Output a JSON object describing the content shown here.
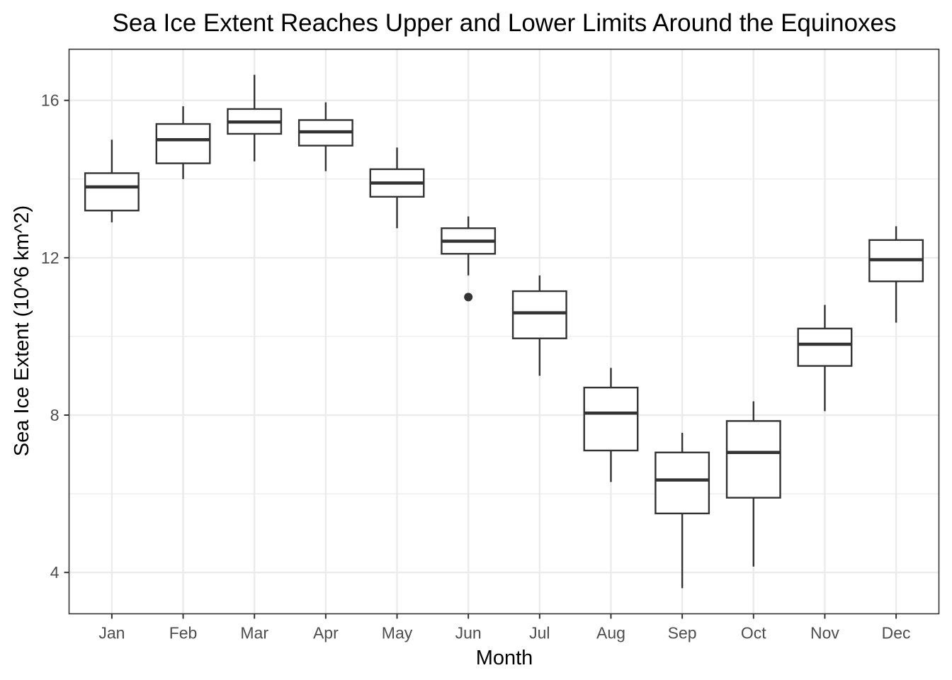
{
  "chart_data": {
    "type": "boxplot",
    "title": "Sea Ice Extent Reaches Upper and Lower Limits Around the Equinoxes",
    "xlabel": "Month",
    "ylabel": "Sea Ice Extent (10^6 km^2)",
    "ylim": [
      2.95,
      17.3
    ],
    "yticks": [
      4,
      8,
      12,
      16
    ],
    "grid": true,
    "categories": [
      "Jan",
      "Feb",
      "Mar",
      "Apr",
      "May",
      "Jun",
      "Jul",
      "Aug",
      "Sep",
      "Oct",
      "Nov",
      "Dec"
    ],
    "boxes": [
      {
        "min": 12.9,
        "q1": 13.2,
        "median": 13.8,
        "q3": 14.15,
        "max": 15.0,
        "outliers": []
      },
      {
        "min": 14.0,
        "q1": 14.4,
        "median": 15.0,
        "q3": 15.4,
        "max": 15.85,
        "outliers": []
      },
      {
        "min": 14.45,
        "q1": 15.15,
        "median": 15.45,
        "q3": 15.78,
        "max": 16.65,
        "outliers": []
      },
      {
        "min": 14.2,
        "q1": 14.85,
        "median": 15.2,
        "q3": 15.5,
        "max": 15.95,
        "outliers": []
      },
      {
        "min": 12.75,
        "q1": 13.55,
        "median": 13.9,
        "q3": 14.25,
        "max": 14.8,
        "outliers": []
      },
      {
        "min": 11.55,
        "q1": 12.1,
        "median": 12.42,
        "q3": 12.75,
        "max": 13.05,
        "outliers": [
          11.0
        ]
      },
      {
        "min": 9.0,
        "q1": 9.95,
        "median": 10.6,
        "q3": 11.15,
        "max": 11.55,
        "outliers": []
      },
      {
        "min": 6.3,
        "q1": 7.1,
        "median": 8.05,
        "q3": 8.7,
        "max": 9.2,
        "outliers": []
      },
      {
        "min": 3.6,
        "q1": 5.5,
        "median": 6.35,
        "q3": 7.05,
        "max": 7.55,
        "outliers": []
      },
      {
        "min": 4.15,
        "q1": 5.9,
        "median": 7.05,
        "q3": 7.85,
        "max": 8.35,
        "outliers": []
      },
      {
        "min": 8.1,
        "q1": 9.25,
        "median": 9.8,
        "q3": 10.2,
        "max": 10.8,
        "outliers": []
      },
      {
        "min": 10.35,
        "q1": 11.4,
        "median": 11.95,
        "q3": 12.45,
        "max": 12.8,
        "outliers": []
      }
    ]
  }
}
